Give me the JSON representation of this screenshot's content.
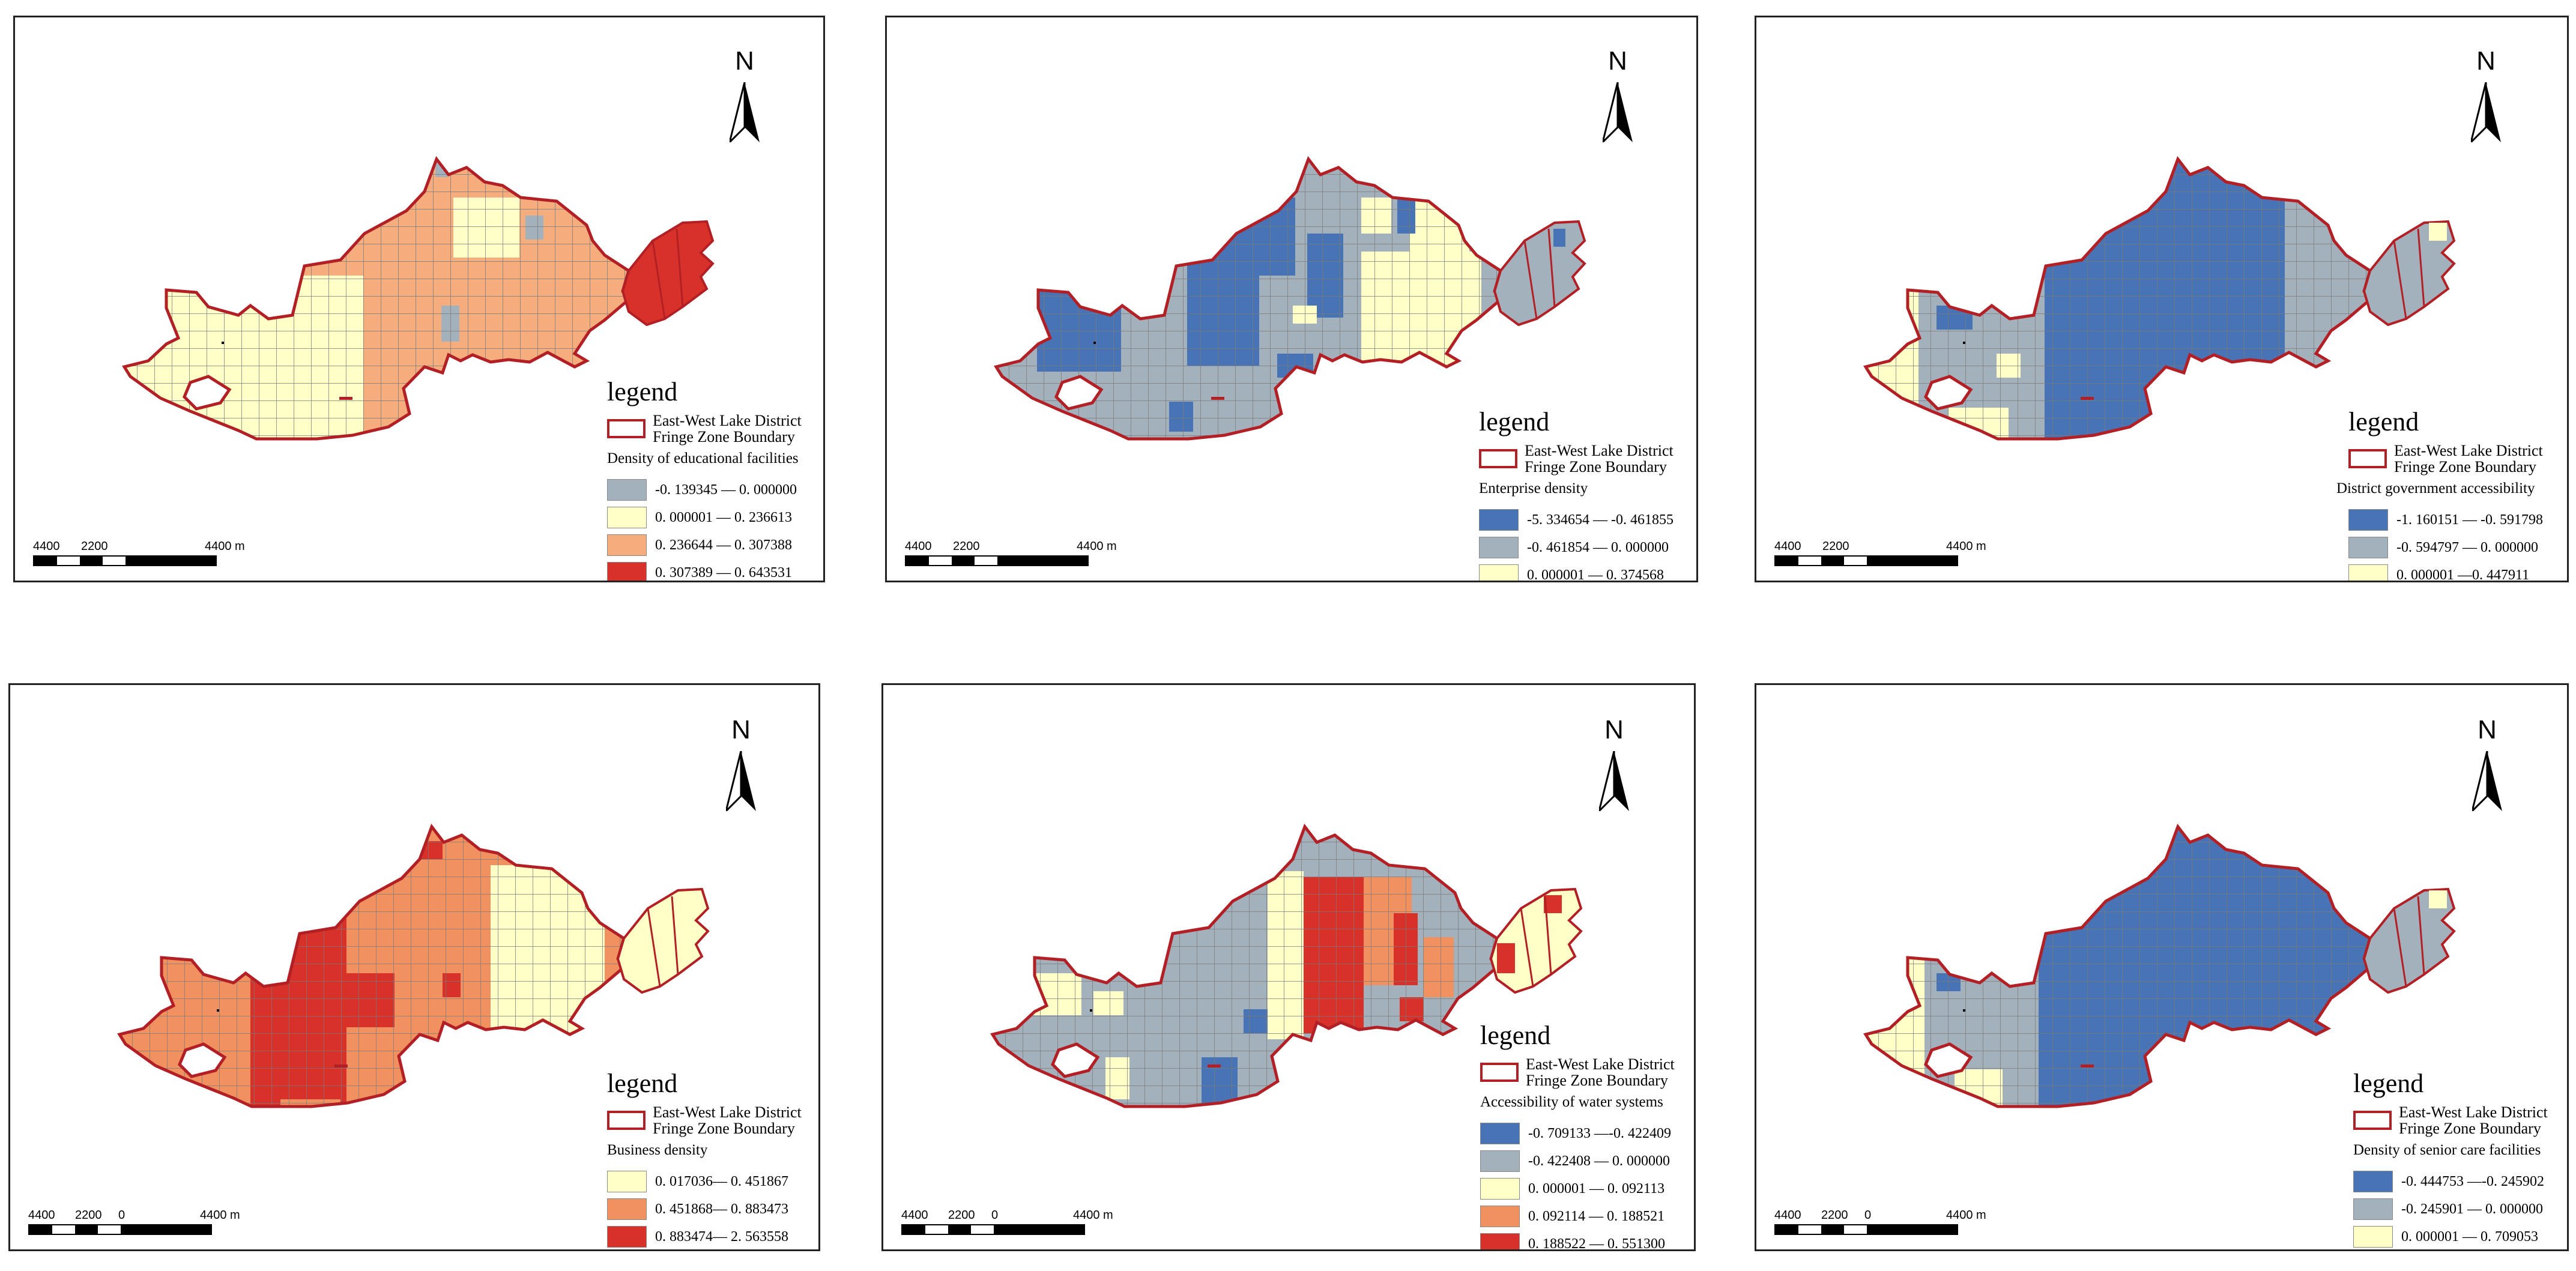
{
  "colors": {
    "boundary": "#b21f24",
    "grid_line": "#7a7a7a",
    "grey_blue": "#a3b1bd",
    "light_yellow": "#ffffc8",
    "light_orange": "#f6ad7e",
    "orange": "#f1915f",
    "red": "#d8312a",
    "blue": "#4874b5"
  },
  "north_arrow": {
    "label": "N"
  },
  "scale_bar": {
    "labels": [
      "4400",
      "2200",
      "0",
      "4400 m"
    ]
  },
  "legend_common": {
    "title": "legend",
    "boundary_line1": "East-West Lake District",
    "boundary_line2": "Fringe Zone Boundary"
  },
  "panels": [
    {
      "field": "Density of educational facilities",
      "classes": [
        {
          "label": "-0. 139345 — 0. 000000",
          "color": "#a3b1bd"
        },
        {
          "label": "0. 000001 — 0. 236613",
          "color": "#ffffc8"
        },
        {
          "label": "0. 236644 — 0. 307388",
          "color": "#f6ad7e"
        },
        {
          "label": "0. 307389 — 0. 643531",
          "color": "#d8312a"
        }
      ]
    },
    {
      "field": "Enterprise density",
      "classes": [
        {
          "label": "-5. 334654 — -0. 461855",
          "color": "#4874b5"
        },
        {
          "label": "-0. 461854 — 0. 000000",
          "color": "#a3b1bd"
        },
        {
          "label": "0. 000001 — 0. 374568",
          "color": "#ffffc8"
        }
      ]
    },
    {
      "field": "District government accessibility",
      "classes": [
        {
          "label": "-1. 160151 — -0. 591798",
          "color": "#4874b5"
        },
        {
          "label": "-0. 594797 — 0. 000000",
          "color": "#a3b1bd"
        },
        {
          "label": "0. 000001 —0. 447911",
          "color": "#ffffc8"
        }
      ]
    },
    {
      "field": "Business density",
      "classes": [
        {
          "label": "0. 017036— 0. 451867",
          "color": "#ffffc8"
        },
        {
          "label": "0. 451868— 0. 883473",
          "color": "#f1915f"
        },
        {
          "label": "0. 883474— 2. 563558",
          "color": "#d8312a"
        }
      ]
    },
    {
      "field": "Accessibility of water systems",
      "classes": [
        {
          "label": "-0. 709133 —-0. 422409",
          "color": "#4874b5"
        },
        {
          "label": "-0. 422408 — 0. 000000",
          "color": "#a3b1bd"
        },
        {
          "label": "0. 000001 — 0. 092113",
          "color": "#ffffc8"
        },
        {
          "label": "0. 092114 — 0. 188521",
          "color": "#f1915f"
        },
        {
          "label": "0. 188522 — 0. 551300",
          "color": "#d8312a"
        }
      ]
    },
    {
      "field": "Density of senior care facilities",
      "classes": [
        {
          "label": "-0. 444753 —-0. 245902",
          "color": "#4874b5"
        },
        {
          "label": "-0. 245901 — 0. 000000",
          "color": "#a3b1bd"
        },
        {
          "label": "0. 000001 — 0. 709053",
          "color": "#ffffc8"
        }
      ]
    }
  ]
}
